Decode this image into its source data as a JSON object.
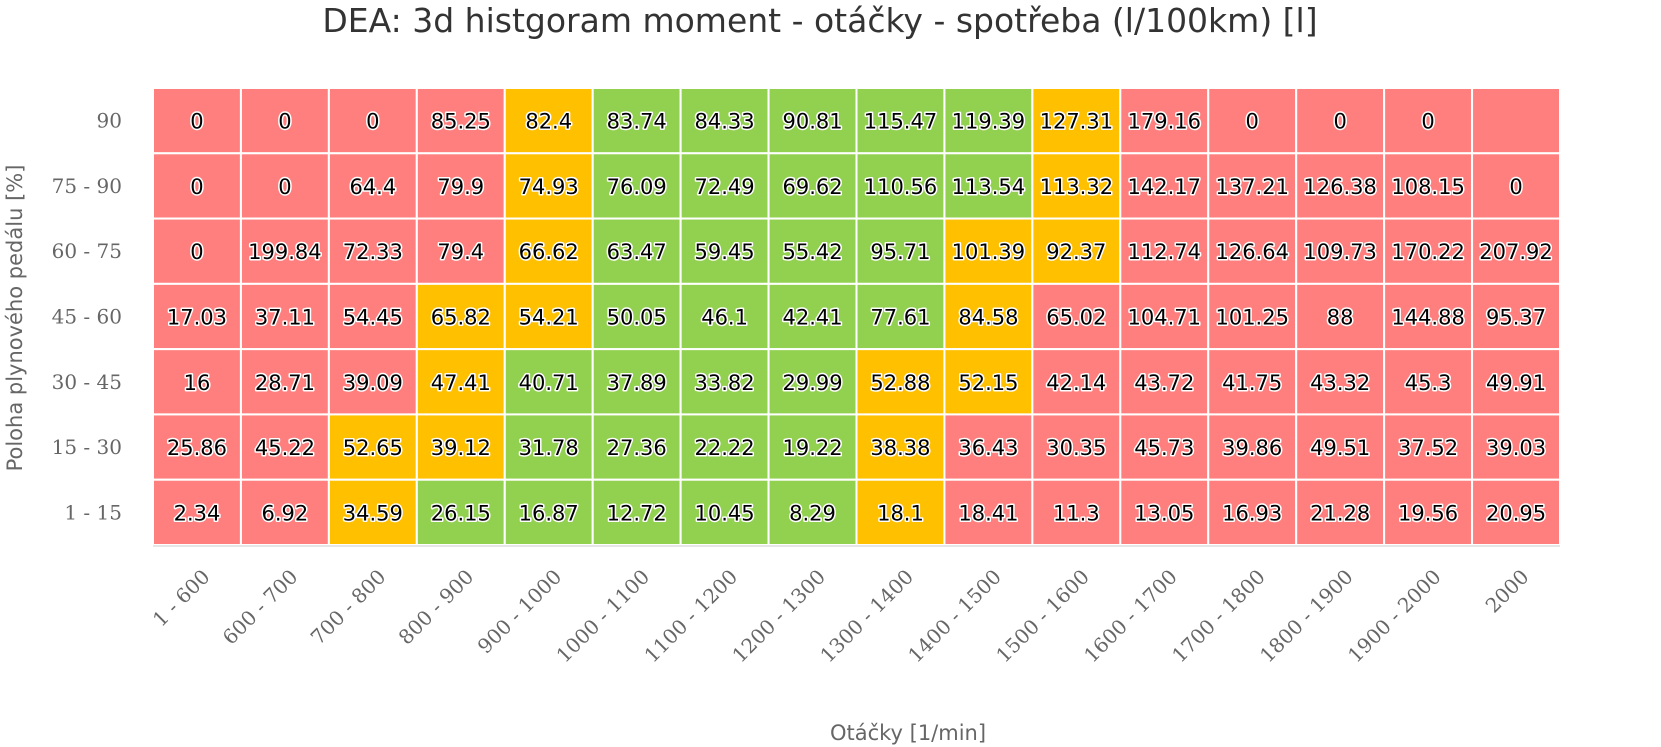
{
  "chart_data": {
    "type": "heatmap",
    "title": "DEA: 3d histgoram moment - otáčky - spotřeba (l/100km) [l]",
    "xlabel": "Otáčky [1/min]",
    "ylabel": "Poloha plynového pedálu [%]",
    "x_categories": [
      "1 - 600",
      "600 - 700",
      "700 - 800",
      "800 - 900",
      "900 - 1000",
      "1000 - 1100",
      "1100 - 1200",
      "1200 - 1300",
      "1300 - 1400",
      "1400 - 1500",
      "1500 - 1600",
      "1600 - 1700",
      "1700 - 1800",
      "1800 - 1900",
      "1900 - 2000",
      "2000"
    ],
    "y_categories": [
      "90",
      "75 - 90",
      "60 - 75",
      "45 - 60",
      "30 - 45",
      "15 - 30",
      "1 - 15"
    ],
    "values": [
      [
        "0",
        "0",
        "0",
        "85.25",
        "82.4",
        "83.74",
        "84.33",
        "90.81",
        "115.47",
        "119.39",
        "127.31",
        "179.16",
        "0",
        "0",
        "0",
        ""
      ],
      [
        "0",
        "0",
        "64.4",
        "79.9",
        "74.93",
        "76.09",
        "72.49",
        "69.62",
        "110.56",
        "113.54",
        "113.32",
        "142.17",
        "137.21",
        "126.38",
        "108.15",
        "0"
      ],
      [
        "0",
        "199.84",
        "72.33",
        "79.4",
        "66.62",
        "63.47",
        "59.45",
        "55.42",
        "95.71",
        "101.39",
        "92.37",
        "112.74",
        "126.64",
        "109.73",
        "170.22",
        "207.92"
      ],
      [
        "17.03",
        "37.11",
        "54.45",
        "65.82",
        "54.21",
        "50.05",
        "46.1",
        "42.41",
        "77.61",
        "84.58",
        "65.02",
        "104.71",
        "101.25",
        "88",
        "144.88",
        "95.37"
      ],
      [
        "16",
        "28.71",
        "39.09",
        "47.41",
        "40.71",
        "37.89",
        "33.82",
        "29.99",
        "52.88",
        "52.15",
        "42.14",
        "43.72",
        "41.75",
        "43.32",
        "45.3",
        "49.91"
      ],
      [
        "25.86",
        "45.22",
        "52.65",
        "39.12",
        "31.78",
        "27.36",
        "22.22",
        "19.22",
        "38.38",
        "36.43",
        "30.35",
        "45.73",
        "39.86",
        "49.51",
        "37.52",
        "39.03"
      ],
      [
        "2.34",
        "6.92",
        "34.59",
        "26.15",
        "16.87",
        "12.72",
        "10.45",
        "8.29",
        "18.1",
        "18.41",
        "11.3",
        "13.05",
        "16.93",
        "21.28",
        "19.56",
        "20.95"
      ]
    ],
    "zones": [
      [
        "r",
        "r",
        "r",
        "r",
        "o",
        "g",
        "g",
        "g",
        "g",
        "g",
        "o",
        "r",
        "r",
        "r",
        "r",
        "r"
      ],
      [
        "r",
        "r",
        "r",
        "r",
        "o",
        "g",
        "g",
        "g",
        "g",
        "g",
        "o",
        "r",
        "r",
        "r",
        "r",
        "r"
      ],
      [
        "r",
        "r",
        "r",
        "r",
        "o",
        "g",
        "g",
        "g",
        "g",
        "o",
        "o",
        "r",
        "r",
        "r",
        "r",
        "r"
      ],
      [
        "r",
        "r",
        "r",
        "o",
        "o",
        "g",
        "g",
        "g",
        "g",
        "o",
        "r",
        "r",
        "r",
        "r",
        "r",
        "r"
      ],
      [
        "r",
        "r",
        "r",
        "o",
        "g",
        "g",
        "g",
        "g",
        "o",
        "o",
        "r",
        "r",
        "r",
        "r",
        "r",
        "r"
      ],
      [
        "r",
        "r",
        "o",
        "o",
        "g",
        "g",
        "g",
        "g",
        "o",
        "r",
        "r",
        "r",
        "r",
        "r",
        "r",
        "r"
      ],
      [
        "r",
        "r",
        "o",
        "g",
        "g",
        "g",
        "g",
        "g",
        "o",
        "r",
        "r",
        "r",
        "r",
        "r",
        "r",
        "r"
      ]
    ],
    "zone_colors": {
      "r": "#ff7f7f",
      "o": "#ffc000",
      "g": "#92d050"
    },
    "legend": "none",
    "grid": false
  }
}
